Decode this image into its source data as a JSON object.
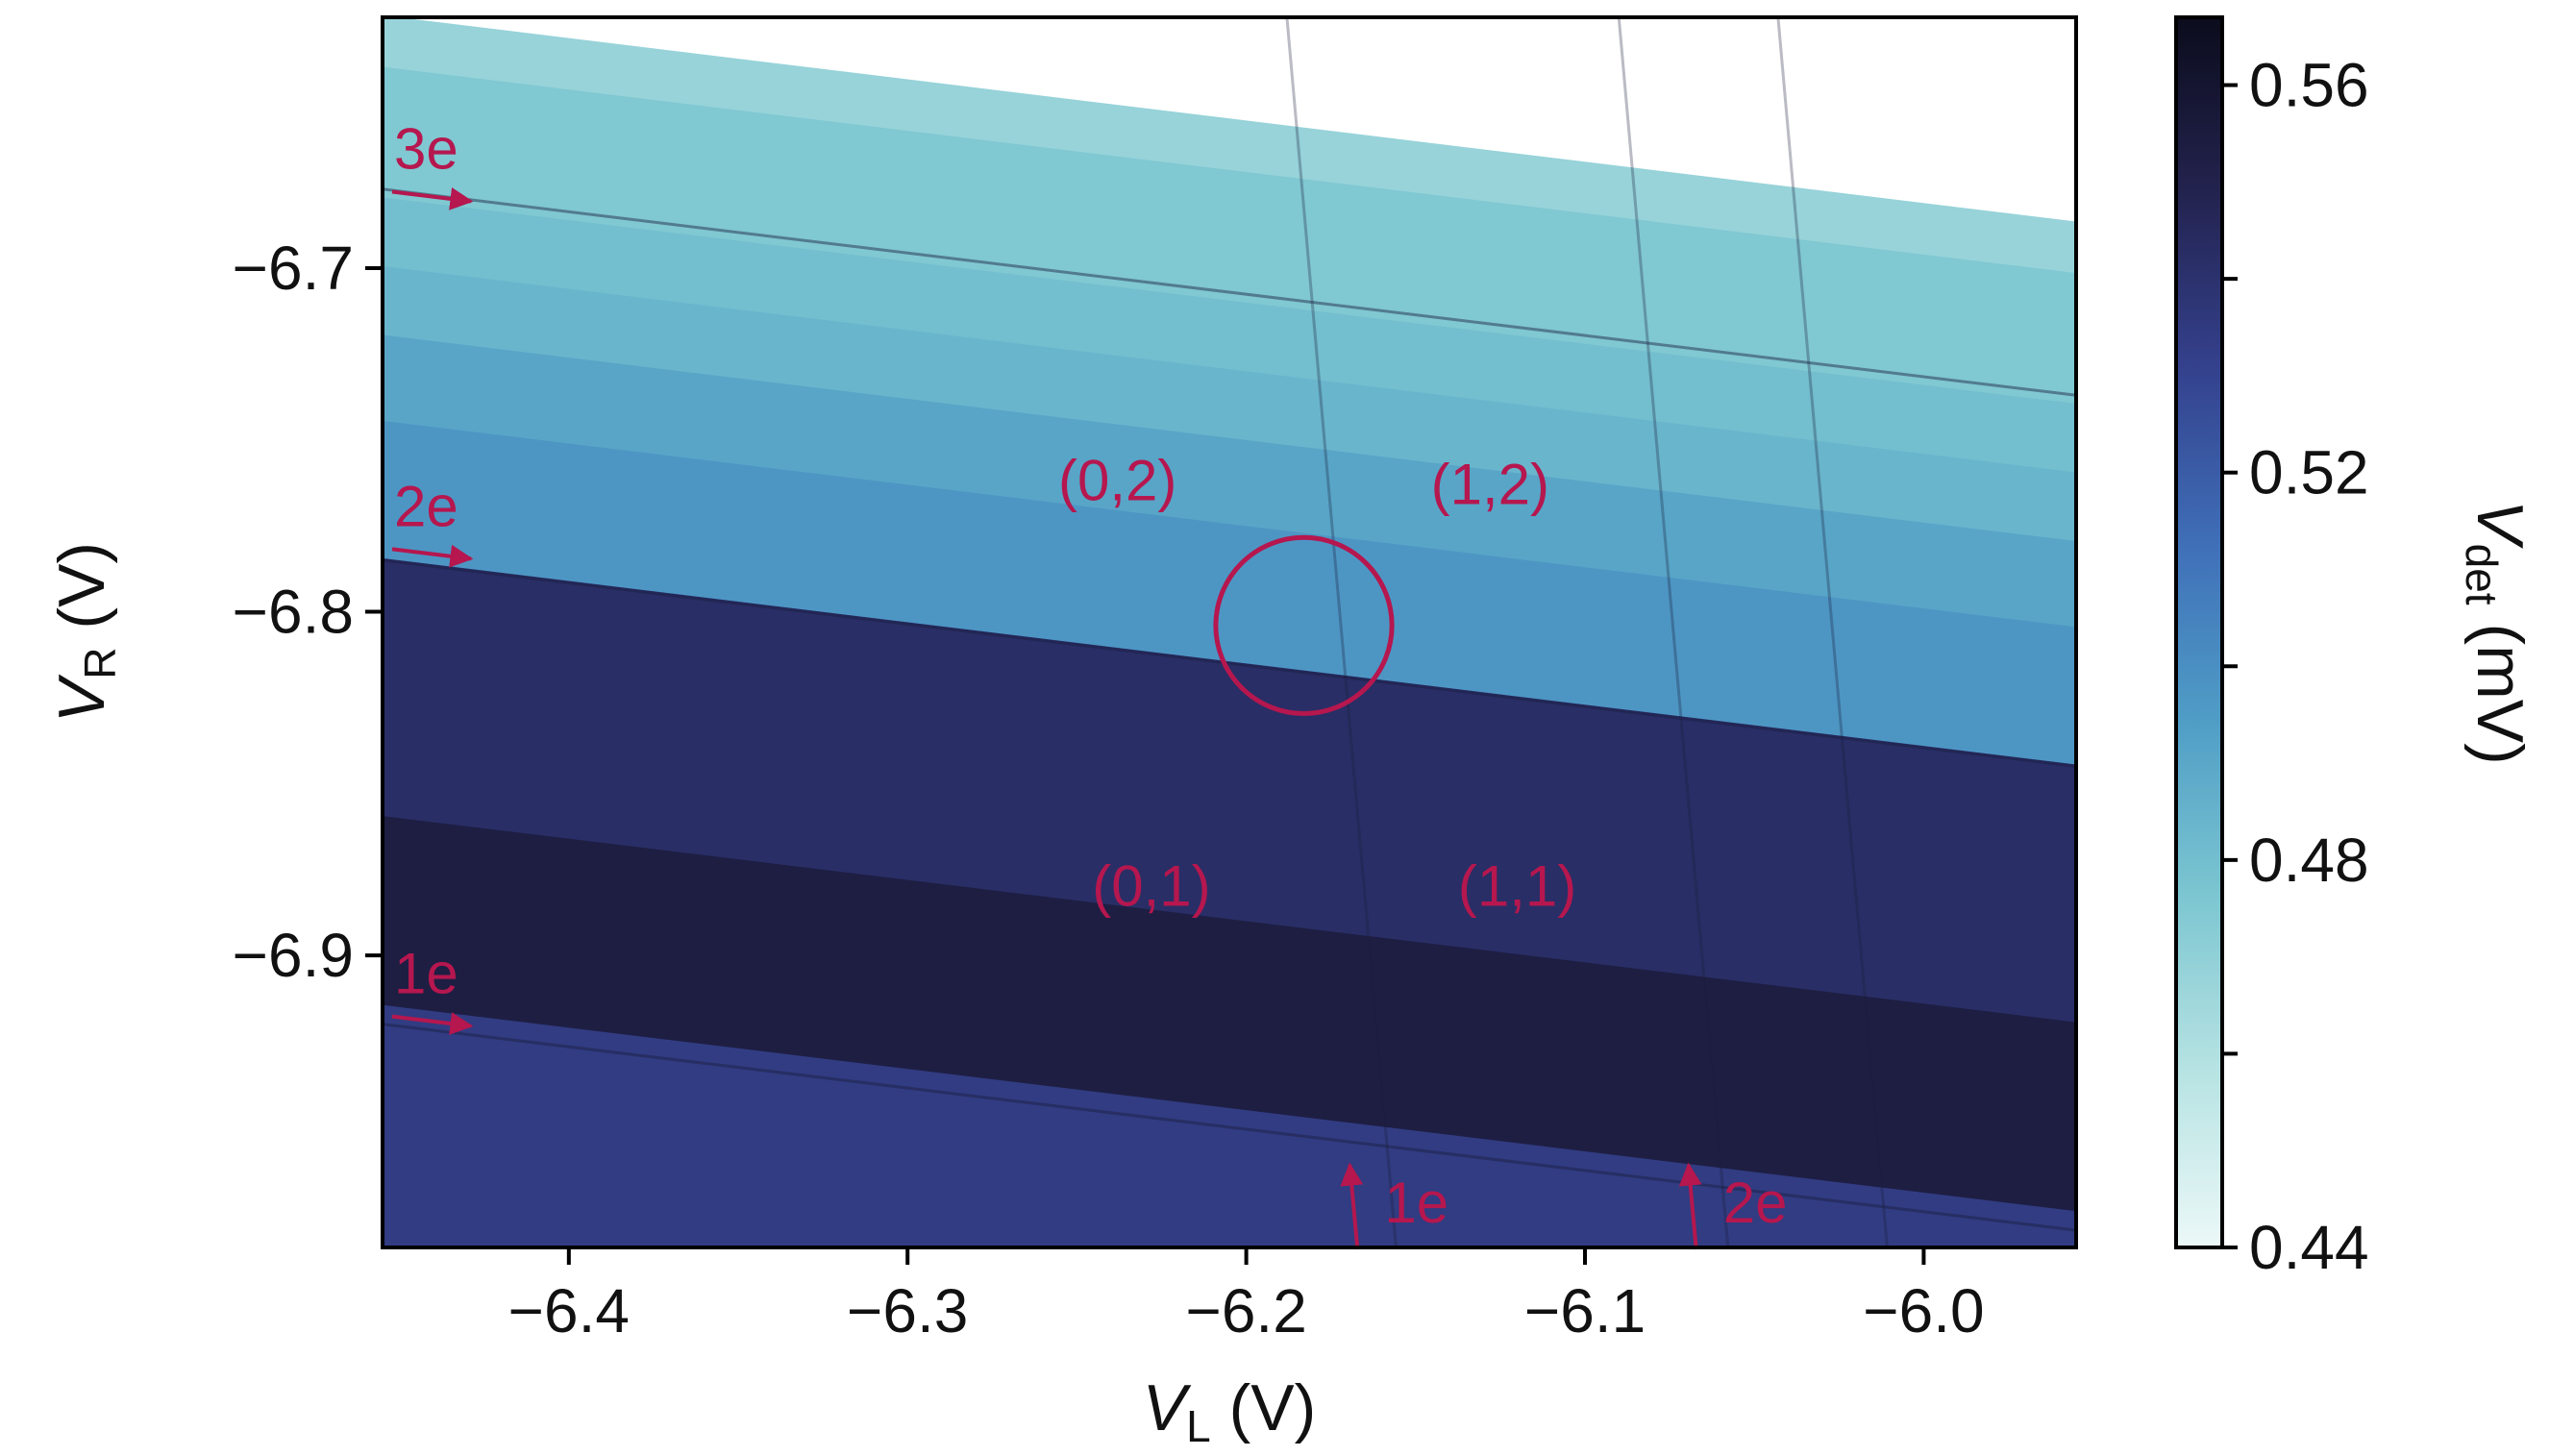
{
  "chart_data": {
    "type": "heatmap",
    "xlabel": {
      "main": "V",
      "sub": "L",
      "unit": " (V)"
    },
    "ylabel": {
      "main": "V",
      "sub": "R",
      "unit": " (V)"
    },
    "xlim": [
      -6.455,
      -5.955
    ],
    "ylim": [
      -6.985,
      -6.627
    ],
    "x_ticks": [
      -6.4,
      -6.3,
      -6.2,
      -6.1,
      -6.0
    ],
    "x_tick_labels": [
      "−6.4",
      "−6.3",
      "−6.2",
      "−6.1",
      "−6.0"
    ],
    "y_ticks": [
      -6.7,
      -6.8,
      -6.9
    ],
    "y_tick_labels": [
      "−6.7",
      "−6.8",
      "−6.9"
    ],
    "colorbar": {
      "label": {
        "main": "V",
        "sub": "det",
        "unit": " (mV)"
      },
      "range": [
        0.44,
        0.567
      ],
      "ticks": [
        0.44,
        0.46,
        0.48,
        0.5,
        0.52,
        0.54,
        0.56
      ],
      "tick_labels": [
        "0.44",
        "",
        "0.48",
        "",
        "0.52",
        "",
        "0.56"
      ],
      "colors": [
        "#ecf8f8",
        "#b7e3e3",
        "#7cc6d1",
        "#4f9dc6",
        "#3f6fb8",
        "#34418d",
        "#23234f",
        "#0b0c1c"
      ]
    },
    "regions": [
      {
        "vr_top": -6.627,
        "vr_bottom": -6.642,
        "value": 0.468
      },
      {
        "vr_top": -6.642,
        "vr_bottom": -6.68,
        "value": 0.475
      },
      {
        "vr_top": -6.68,
        "vr_bottom": -6.7,
        "value": 0.48
      },
      {
        "vr_top": -6.7,
        "vr_bottom": -6.72,
        "value": 0.484
      },
      {
        "vr_top": -6.72,
        "vr_bottom": -6.745,
        "value": 0.491
      },
      {
        "vr_top": -6.745,
        "vr_bottom": -6.785,
        "value": 0.497
      },
      {
        "vr_top": -6.785,
        "vr_bottom": -6.86,
        "value": 0.542
      },
      {
        "vr_top": -6.86,
        "vr_bottom": -6.915,
        "value": 0.553
      },
      {
        "vr_top": -6.915,
        "vr_bottom": -6.985,
        "value": 0.534
      }
    ],
    "charge_transitions_right": [
      {
        "vr_at_left": -6.677,
        "slope": -0.12
      },
      {
        "vr_at_left": -6.785,
        "slope": -0.12
      },
      {
        "vr_at_left": -6.92,
        "slope": -0.12
      }
    ],
    "charge_transitions_left": [
      {
        "vl_at_top": -6.188,
        "slope_vl_per_vr": 0.09
      },
      {
        "vl_at_top": -6.09,
        "slope_vl_per_vr": 0.09
      },
      {
        "vl_at_top": -6.043,
        "slope_vl_per_vr": 0.09
      }
    ],
    "annotations": [
      {
        "text": "(0,2)",
        "vl": -6.238,
        "vr": -6.762
      },
      {
        "text": "(1,2)",
        "vl": -6.128,
        "vr": -6.763
      },
      {
        "text": "(0,1)",
        "vl": -6.228,
        "vr": -6.88
      },
      {
        "text": "(1,1)",
        "vl": -6.12,
        "vr": -6.88
      }
    ],
    "arrows": [
      {
        "text": "3e",
        "direction": "right",
        "vl": -6.455,
        "vr": -6.68
      },
      {
        "text": "2e",
        "direction": "right",
        "vl": -6.455,
        "vr": -6.784
      },
      {
        "text": "1e",
        "direction": "right",
        "vl": -6.455,
        "vr": -6.92
      },
      {
        "text": "1e",
        "direction": "up",
        "vl": -6.17,
        "vr": -6.985
      },
      {
        "text": "2e",
        "direction": "up",
        "vl": -6.07,
        "vr": -6.985
      }
    ],
    "highlight_circle": {
      "vl": -6.183,
      "vr": -6.804,
      "radius_vl": 0.026
    },
    "annotation_color": "#b5174e"
  }
}
